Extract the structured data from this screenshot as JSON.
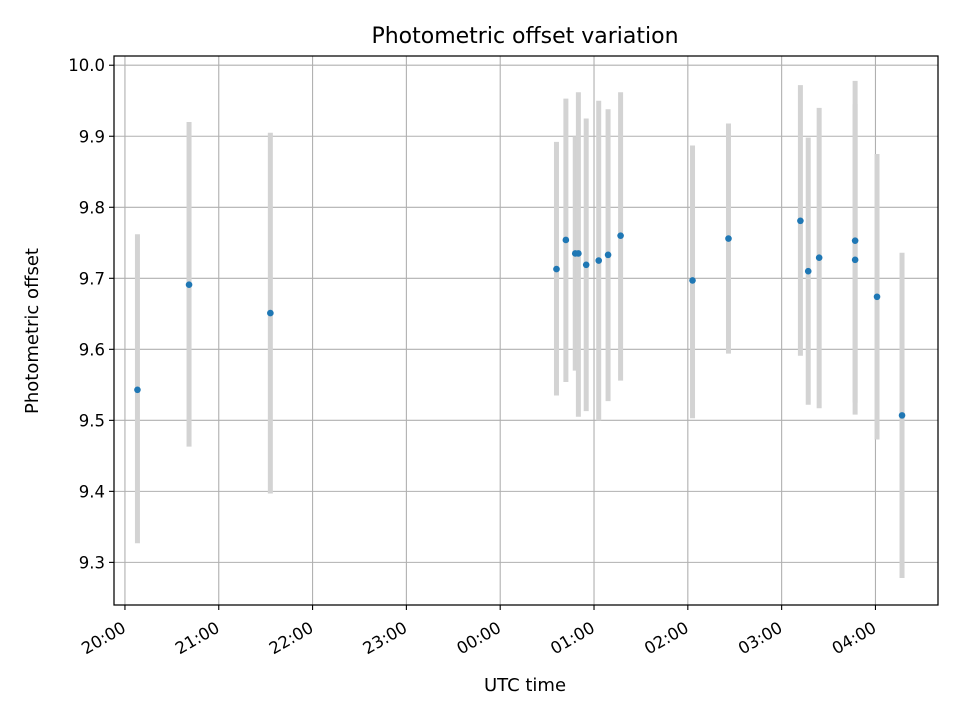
{
  "chart_data": {
    "type": "scatter",
    "title": "Photometric offset variation",
    "xlabel": "UTC time",
    "ylabel": "Photometric offset",
    "x_axis": {
      "kind": "time",
      "ticks": [
        "20:00",
        "21:00",
        "22:00",
        "23:00",
        "00:00",
        "01:00",
        "02:00",
        "03:00",
        "04:00"
      ],
      "range": [
        "19:53",
        "04:40"
      ]
    },
    "y_axis": {
      "ticks": [
        "9.3",
        "9.4",
        "9.5",
        "9.6",
        "9.7",
        "9.8",
        "9.9",
        "10.0"
      ],
      "range": [
        9.24,
        10.013
      ]
    },
    "grid": true,
    "colors": {
      "points": "#1f77b4",
      "error_bars": "#d3d3d3",
      "grid": "#b0b0b0"
    },
    "points": [
      {
        "time": "20:08",
        "y": 9.543,
        "err_low": 9.327,
        "err_high": 9.762
      },
      {
        "time": "20:41",
        "y": 9.691,
        "err_low": 9.463,
        "err_high": 9.92
      },
      {
        "time": "21:33",
        "y": 9.651,
        "err_low": 9.397,
        "err_high": 9.905
      },
      {
        "time": "00:36",
        "y": 9.713,
        "err_low": 9.535,
        "err_high": 9.892
      },
      {
        "time": "00:42",
        "y": 9.754,
        "err_low": 9.554,
        "err_high": 9.953
      },
      {
        "time": "00:48",
        "y": 9.735,
        "err_low": 9.57,
        "err_high": 9.9
      },
      {
        "time": "00:50",
        "y": 9.735,
        "err_low": 9.505,
        "err_high": 9.962
      },
      {
        "time": "00:55",
        "y": 9.719,
        "err_low": 9.513,
        "err_high": 9.925
      },
      {
        "time": "01:03",
        "y": 9.725,
        "err_low": 9.5,
        "err_high": 9.95
      },
      {
        "time": "01:09",
        "y": 9.733,
        "err_low": 9.527,
        "err_high": 9.938
      },
      {
        "time": "01:17",
        "y": 9.76,
        "err_low": 9.556,
        "err_high": 9.962
      },
      {
        "time": "02:03",
        "y": 9.697,
        "err_low": 9.503,
        "err_high": 9.887
      },
      {
        "time": "02:26",
        "y": 9.756,
        "err_low": 9.594,
        "err_high": 9.918
      },
      {
        "time": "03:12",
        "y": 9.781,
        "err_low": 9.591,
        "err_high": 9.972
      },
      {
        "time": "03:17",
        "y": 9.71,
        "err_low": 9.522,
        "err_high": 9.898
      },
      {
        "time": "03:24",
        "y": 9.729,
        "err_low": 9.517,
        "err_high": 9.94
      },
      {
        "time": "03:47",
        "y": 9.753,
        "err_low": 9.525,
        "err_high": 9.978
      },
      {
        "time": "03:47",
        "y": 9.726,
        "err_low": 9.508,
        "err_high": 9.945
      },
      {
        "time": "04:01",
        "y": 9.674,
        "err_low": 9.473,
        "err_high": 9.875
      },
      {
        "time": "04:17",
        "y": 9.507,
        "err_low": 9.278,
        "err_high": 9.736
      }
    ]
  }
}
